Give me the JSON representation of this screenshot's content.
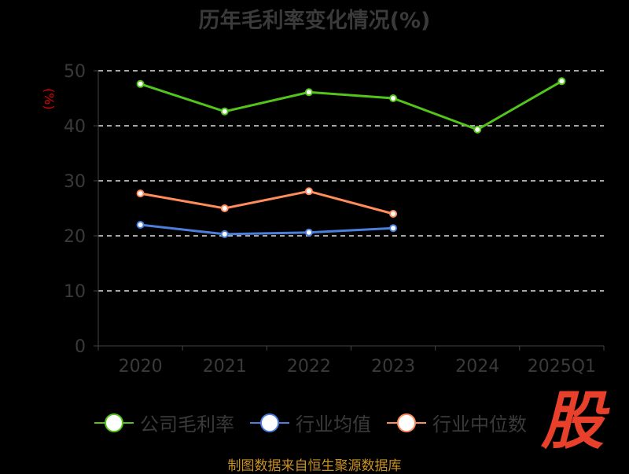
{
  "chart_data": {
    "type": "line",
    "title": "历年毛利率变化情况(%)",
    "ylabel": "(%)",
    "xlabel": "",
    "categories": [
      "2020",
      "2021",
      "2022",
      "2023",
      "2024",
      "2025Q1"
    ],
    "ylim": [
      0,
      50
    ],
    "yticks": [
      "0",
      "10",
      "20",
      "30",
      "40",
      "50"
    ],
    "grid": true,
    "legend_position": "bottom",
    "series": [
      {
        "name": "公司毛利率",
        "color": "#52c41a",
        "values": [
          47.6,
          42.6,
          46.1,
          45.0,
          39.3,
          48.1
        ]
      },
      {
        "name": "行业均值",
        "color": "#4a7fdc",
        "values": [
          22.0,
          20.3,
          20.6,
          21.4,
          null,
          null
        ]
      },
      {
        "name": "行业中位数",
        "color": "#ff8c5a",
        "values": [
          27.7,
          25.0,
          28.1,
          24.0,
          null,
          null
        ]
      }
    ]
  },
  "source": "制图数据来自恒生聚源数据库",
  "logo_text": "股"
}
